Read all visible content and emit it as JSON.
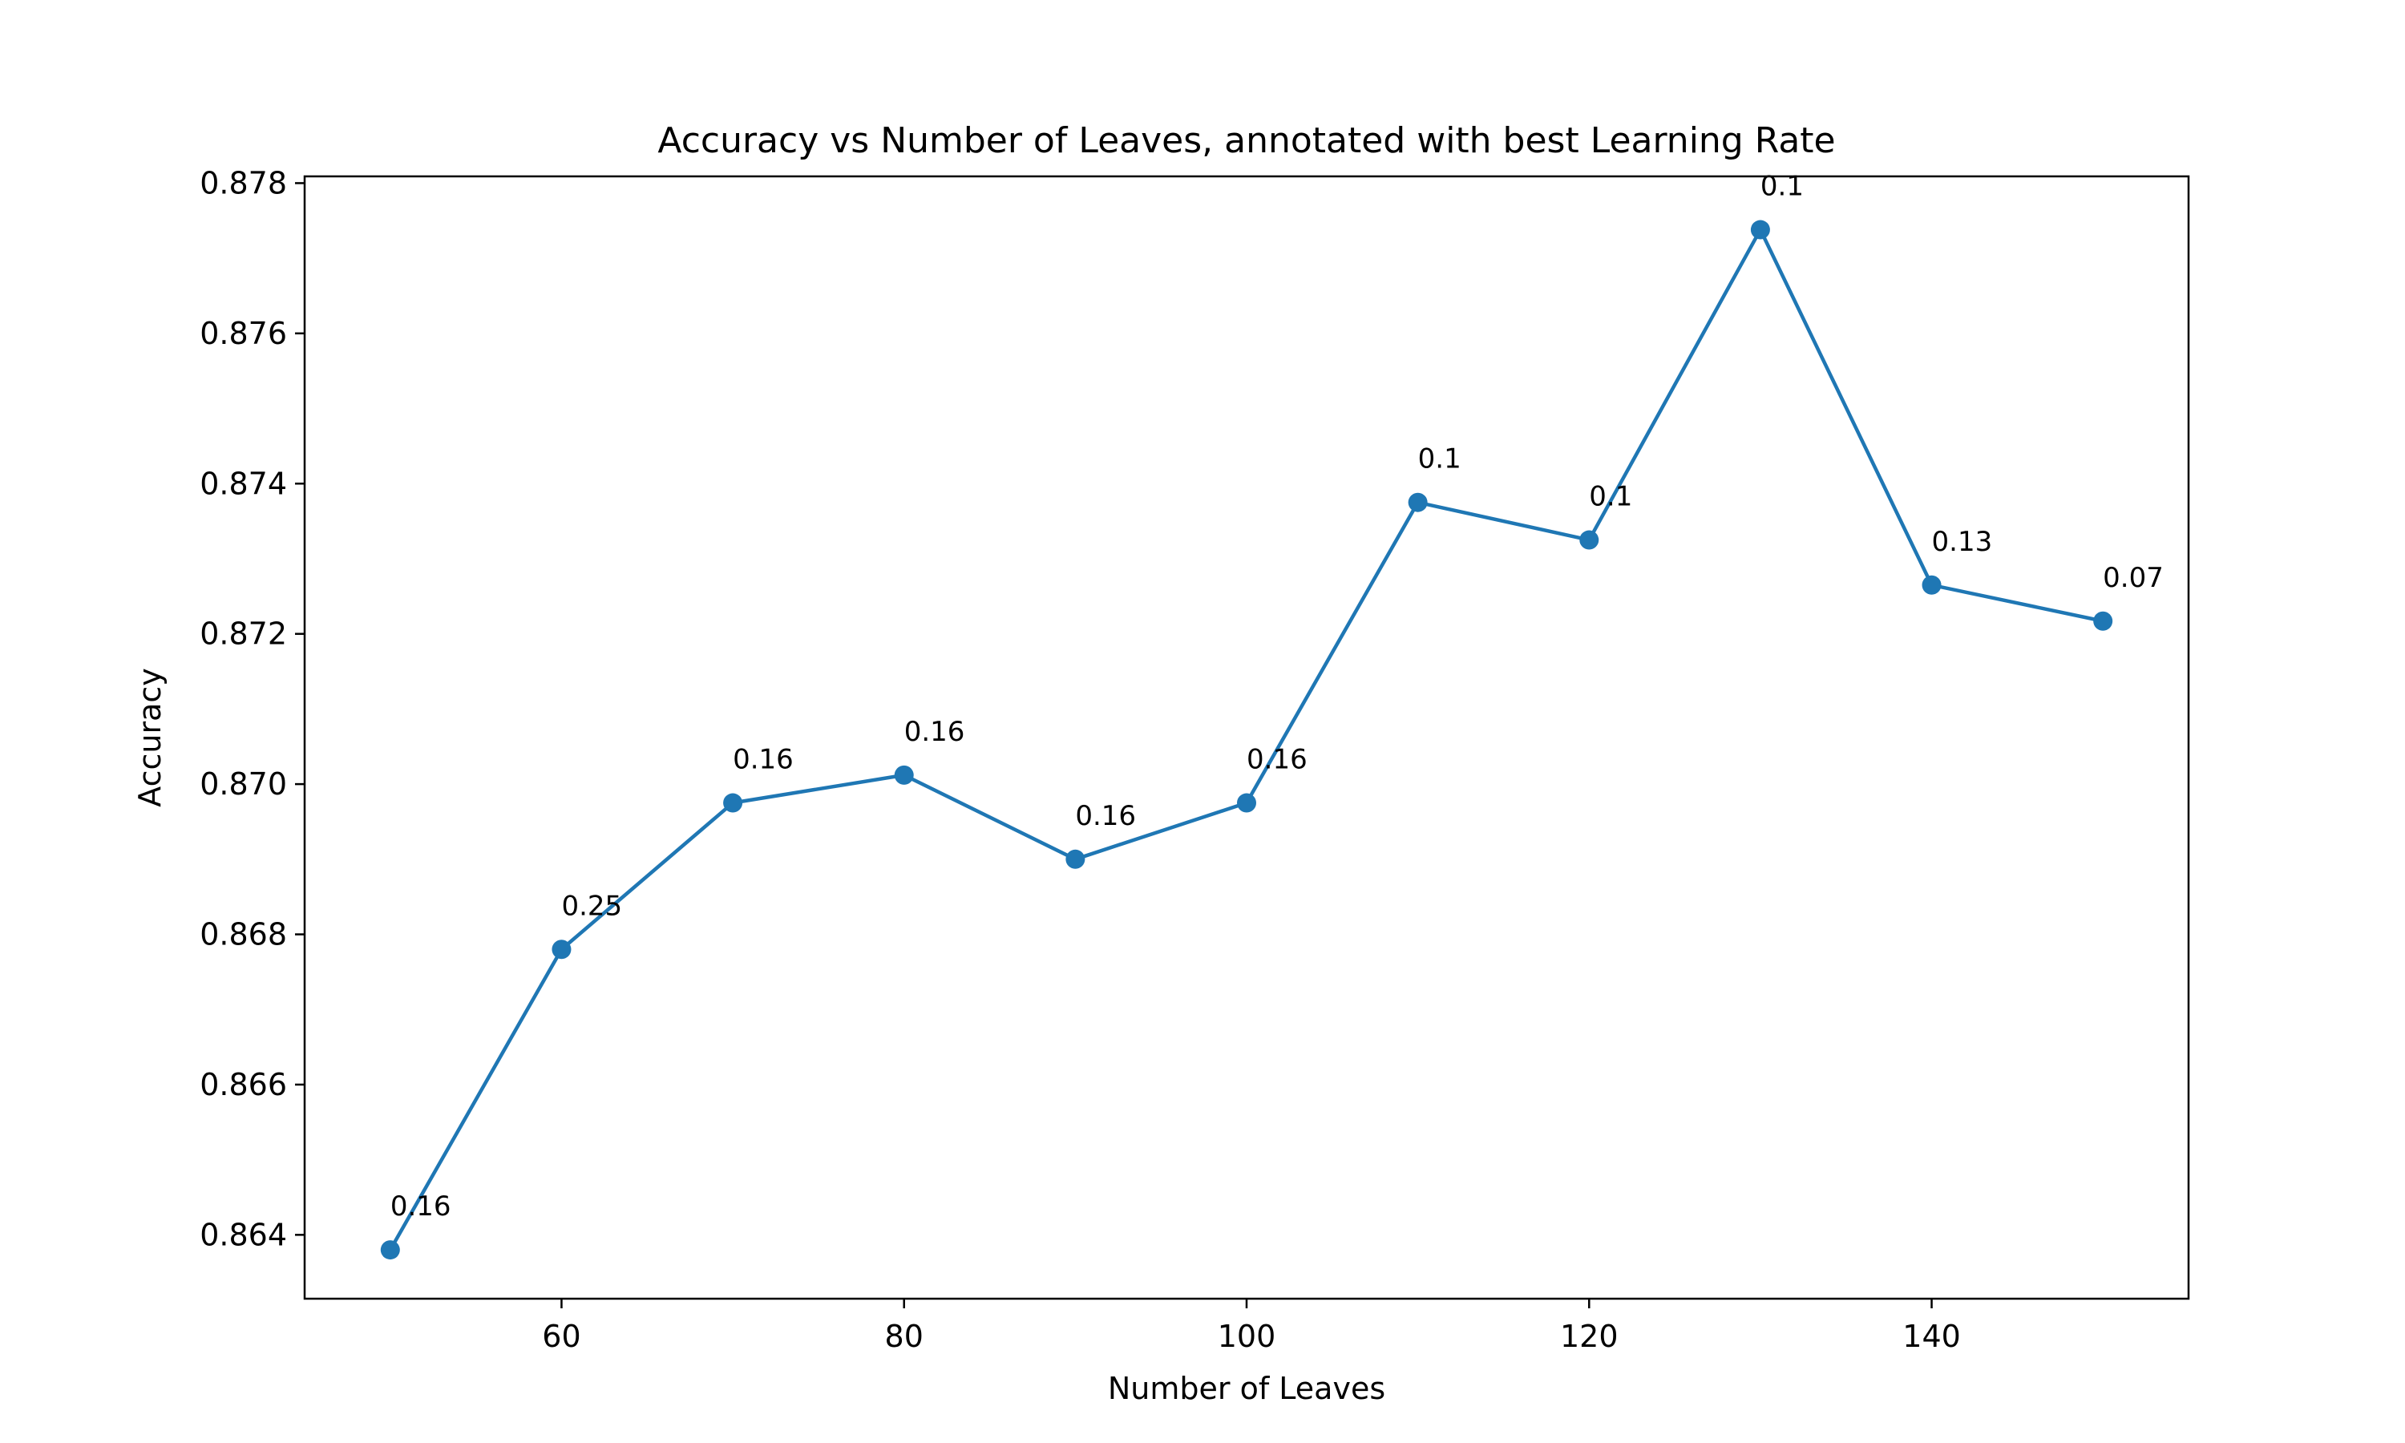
{
  "chart_data": {
    "type": "line",
    "title": "Accuracy vs Number of Leaves, annotated with best Learning Rate",
    "xlabel": "Number of Leaves",
    "ylabel": "Accuracy",
    "xlim": [
      45,
      155
    ],
    "ylim": [
      0.86315,
      0.87809
    ],
    "xticks": [
      60,
      80,
      100,
      120,
      140
    ],
    "yticks": [
      0.864,
      0.866,
      0.868,
      0.87,
      0.872,
      0.874,
      0.876,
      0.878
    ],
    "ytick_labels": [
      "0.864",
      "0.866",
      "0.868",
      "0.870",
      "0.872",
      "0.874",
      "0.876",
      "0.878"
    ],
    "grid": false,
    "color": "#1f77b4",
    "series": [
      {
        "x": [
          50,
          60,
          70,
          80,
          90,
          100,
          110,
          120,
          130,
          140,
          150
        ],
        "y": [
          0.8638,
          0.8678,
          0.86975,
          0.87012,
          0.869,
          0.86975,
          0.87375,
          0.87325,
          0.87738,
          0.87265,
          0.87217
        ],
        "annotations": [
          "0.16",
          "0.25",
          "0.16",
          "0.16",
          "0.16",
          "0.16",
          "0.1",
          "0.1",
          "0.1",
          "0.13",
          "0.07"
        ]
      }
    ]
  }
}
